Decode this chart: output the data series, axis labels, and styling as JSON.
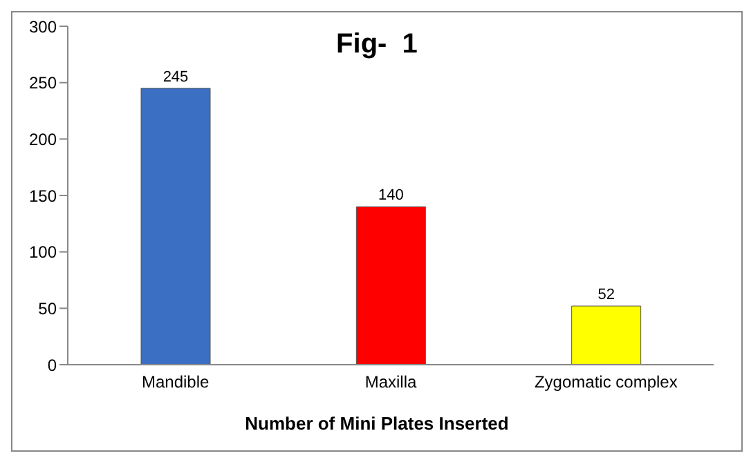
{
  "chart_data": {
    "type": "bar",
    "title": "Fig-  1",
    "xlabel": "Number of Mini Plates Inserted",
    "categories": [
      "Mandible",
      "Maxilla",
      "Zygomatic complex"
    ],
    "values": [
      245,
      140,
      52
    ],
    "colors": [
      "#3b6fc4",
      "#ff0000",
      "#ffff00"
    ],
    "ylim": [
      0,
      300
    ],
    "yticks": [
      0,
      50,
      100,
      150,
      200,
      250,
      300
    ],
    "grid": false,
    "data_labels": true,
    "legend": false
  }
}
